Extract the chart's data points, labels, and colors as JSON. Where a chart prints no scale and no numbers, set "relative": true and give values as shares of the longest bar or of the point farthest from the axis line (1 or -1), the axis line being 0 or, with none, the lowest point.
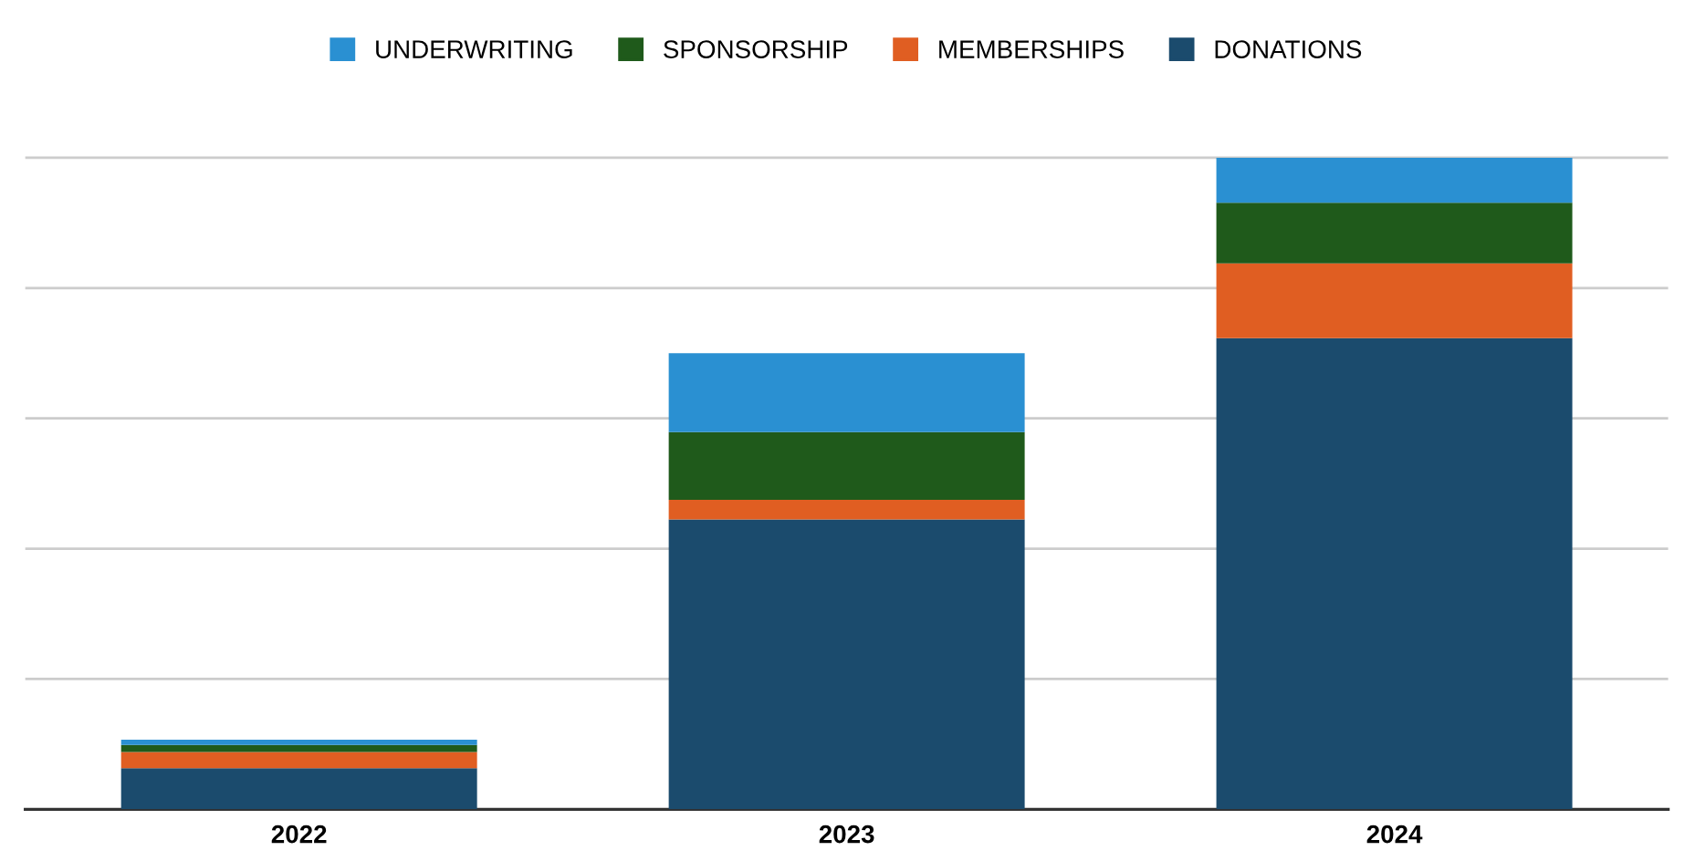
{
  "chart_data": {
    "type": "bar",
    "stacked": true,
    "relative": true,
    "categories": [
      "2022",
      "2023",
      "2024"
    ],
    "series": [
      {
        "name": "DONATIONS",
        "color": "#1b4b6d",
        "values": [
          0.063,
          0.445,
          0.723
        ]
      },
      {
        "name": "MEMBERSHIPS",
        "color": "#e05e22",
        "values": [
          0.025,
          0.03,
          0.115
        ]
      },
      {
        "name": "SPONSORSHIP",
        "color": "#1f5a1b",
        "values": [
          0.011,
          0.104,
          0.093
        ]
      },
      {
        "name": "UNDERWRITING",
        "color": "#2a90d2",
        "values": [
          0.008,
          0.121,
          0.069
        ]
      }
    ],
    "legend": "top",
    "grid": "y"
  }
}
